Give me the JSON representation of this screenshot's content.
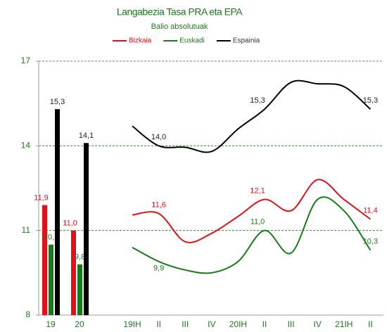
{
  "chart_data": [
    {
      "type": "bar",
      "title": "Langabezia Tasa PRA eta EPA",
      "subtitle": "Balio absolutuak",
      "categories": [
        "19",
        "20"
      ],
      "series": [
        {
          "name": "Bizkaia",
          "color": "#e3101b",
          "values": [
            11.9,
            11.0
          ],
          "value_labels": [
            "11,9",
            "11,0"
          ]
        },
        {
          "name": "Euskadi",
          "color": "#1a7a1a",
          "values": [
            10.5,
            9.8
          ],
          "value_labels": [
            "10,5",
            "9,8"
          ]
        },
        {
          "name": "Espainia",
          "color": "#000000",
          "values": [
            15.3,
            14.1
          ],
          "value_labels": [
            "15,3",
            "14,1"
          ]
        }
      ],
      "ylim": [
        8,
        17
      ],
      "yticks": [
        8,
        11,
        14,
        17
      ],
      "grid": true
    },
    {
      "type": "line",
      "categories": [
        "19IH",
        "II",
        "III",
        "IV",
        "20IH",
        "II",
        "III",
        "IV",
        "21IH",
        "II"
      ],
      "series": [
        {
          "name": "Bizkaia",
          "color": "#e3101b",
          "values": [
            11.55,
            11.6,
            10.6,
            10.9,
            11.5,
            12.1,
            11.7,
            12.8,
            12.1,
            11.4
          ],
          "value_labels": [
            null,
            "11,6",
            null,
            null,
            null,
            "12,1",
            null,
            null,
            null,
            "11,4"
          ]
        },
        {
          "name": "Euskadi",
          "color": "#1a7a1a",
          "values": [
            10.4,
            9.9,
            9.6,
            9.5,
            9.9,
            11.0,
            10.2,
            12.1,
            11.7,
            10.3
          ],
          "value_labels": [
            null,
            "9,9",
            null,
            null,
            null,
            "11,0",
            null,
            null,
            null,
            "10,3"
          ]
        },
        {
          "name": "Espainia",
          "color": "#000000",
          "values": [
            14.7,
            14.0,
            13.95,
            13.8,
            14.6,
            15.3,
            16.25,
            16.2,
            16.1,
            15.3
          ],
          "value_labels": [
            null,
            "14,0",
            null,
            null,
            null,
            "15,3",
            null,
            null,
            null,
            "15,3"
          ]
        }
      ]
    }
  ]
}
